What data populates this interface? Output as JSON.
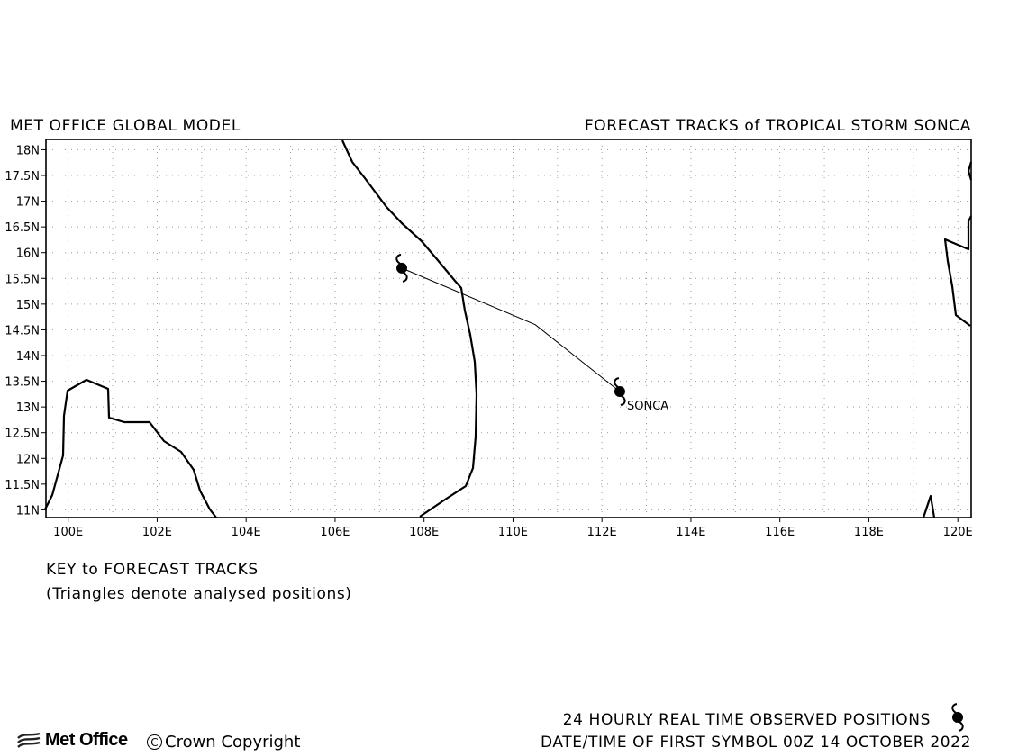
{
  "header": {
    "left_title": "MET OFFICE GLOBAL MODEL",
    "right_title": "FORECAST TRACKS of TROPICAL STORM SONCA"
  },
  "map": {
    "lat_labels": [
      "18N",
      "17.5N",
      "17N",
      "16.5N",
      "16N",
      "15.5N",
      "15N",
      "14.5N",
      "14N",
      "13.5N",
      "13N",
      "12.5N",
      "12N",
      "11.5N",
      "11N"
    ],
    "lon_labels": [
      "100E",
      "102E",
      "104E",
      "106E",
      "108E",
      "110E",
      "112E",
      "114E",
      "116E",
      "118E",
      "120E"
    ],
    "lon_range": [
      99.5,
      120.3
    ],
    "lat_range": [
      10.85,
      18.2
    ],
    "grid": "dotted",
    "storm_label": "SONCA",
    "track": [
      {
        "lon": 112.4,
        "lat": 13.3
      },
      {
        "lon": 110.5,
        "lat": 14.6
      },
      {
        "lon": 107.5,
        "lat": 15.7
      }
    ]
  },
  "key": {
    "title": "KEY to FORECAST TRACKS",
    "note": "(Triangles denote analysed positions)"
  },
  "footer": {
    "logo_text": "Met Office",
    "copyright_symbol": "C",
    "copyright_text": "Crown Copyright",
    "observed_label": "24 HOURLY REAL TIME OBSERVED POSITIONS",
    "datetime_label": "DATE/TIME OF FIRST SYMBOL 00Z 14 OCTOBER 2022"
  }
}
